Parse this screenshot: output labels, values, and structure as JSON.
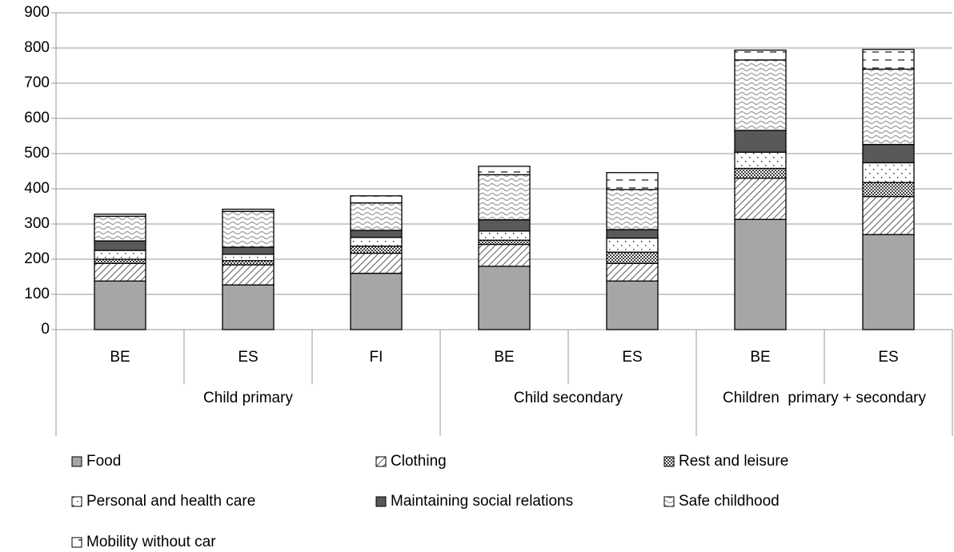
{
  "chart_data": {
    "type": "stacked_bar",
    "categories": [
      "BE",
      "ES",
      "FI",
      "BE",
      "ES",
      "BE",
      "ES"
    ],
    "groups": [
      "Child primary",
      "Child secondary",
      "Children  primary + secondary"
    ],
    "group_sizes": [
      3,
      2,
      2
    ],
    "series": [
      {
        "name": "Food",
        "color": "#a6a6a6",
        "pattern": "solid",
        "values": [
          138,
          127,
          160,
          180,
          138,
          313,
          270
        ]
      },
      {
        "name": "Clothing",
        "color": "#595959",
        "pattern": "diagonal",
        "values": [
          50,
          57,
          57,
          62,
          50,
          117,
          108
        ]
      },
      {
        "name": "Rest and leisure",
        "color": "#404040",
        "pattern": "checker",
        "values": [
          12,
          12,
          20,
          12,
          32,
          28,
          40
        ]
      },
      {
        "name": "Personal and health care",
        "color": "#404040",
        "pattern": "dots",
        "values": [
          25,
          18,
          25,
          26,
          40,
          46,
          56
        ]
      },
      {
        "name": "Maintaining social relations",
        "color": "#595959",
        "pattern": "solid",
        "values": [
          27,
          20,
          20,
          32,
          24,
          62,
          52
        ]
      },
      {
        "name": "Safe childhood",
        "color": "#a6a6a6",
        "pattern": "wave",
        "values": [
          70,
          102,
          78,
          128,
          114,
          200,
          214
        ]
      },
      {
        "name": "Mobility without car",
        "color": "#404040",
        "pattern": "dash",
        "values": [
          6,
          6,
          20,
          24,
          48,
          28,
          56
        ]
      }
    ],
    "ylim": [
      0,
      900
    ],
    "yticks": [
      0,
      100,
      200,
      300,
      400,
      500,
      600,
      700,
      800,
      900
    ],
    "grid": true,
    "legend": "bottom"
  }
}
